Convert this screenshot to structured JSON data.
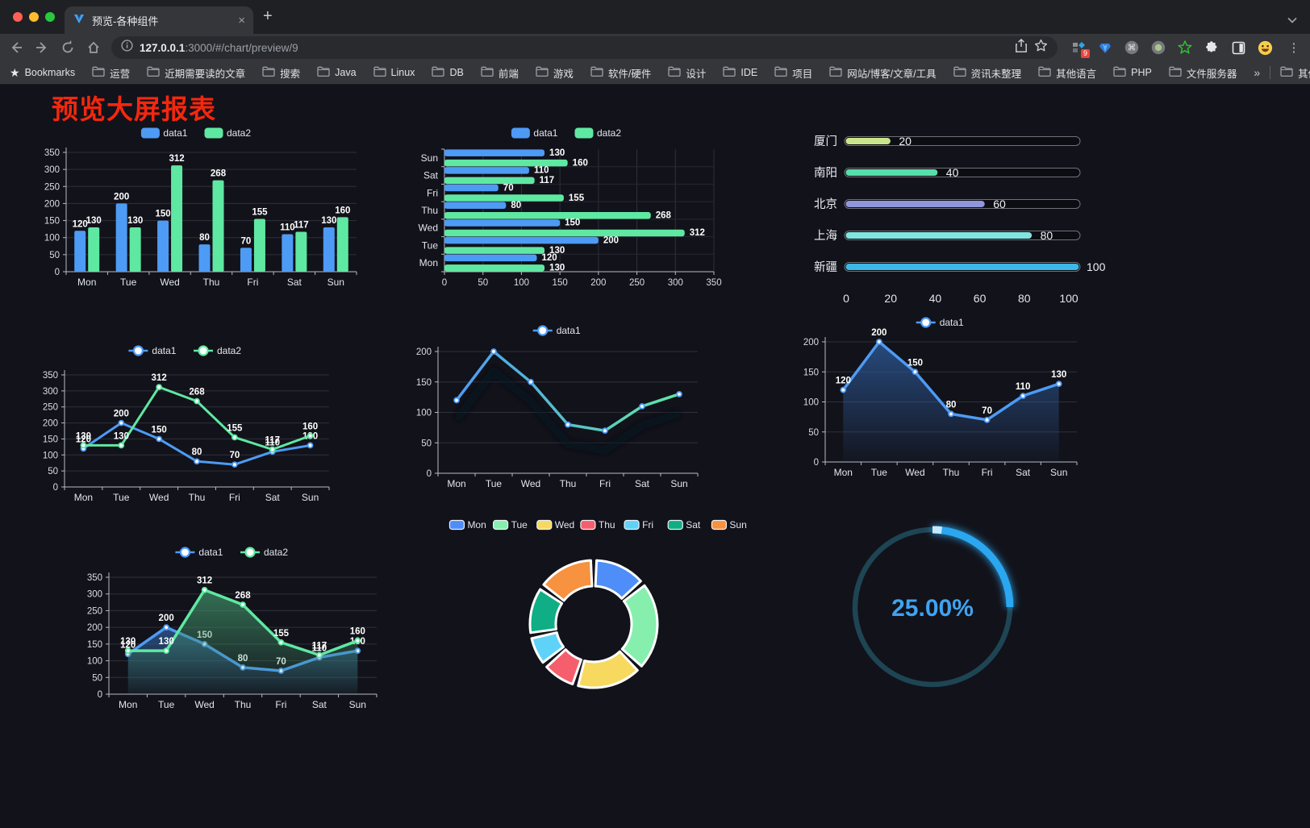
{
  "browser": {
    "tab_title": "预览-各种组件",
    "url": {
      "host": "127.0.0.1",
      "rest": ":3000/#/chart/preview/9"
    },
    "bookmarks_label": "Bookmarks",
    "bookmarks": [
      "运营",
      "近期需要读的文章",
      "搜索",
      "Java",
      "Linux",
      "DB",
      "前端",
      "游戏",
      "软件/硬件",
      "设计",
      "IDE",
      "项目",
      "网站/博客/文章/工具",
      "资讯未整理",
      "其他语言",
      "PHP",
      "文件服务器"
    ],
    "other_bookmarks": "其他书签",
    "extension_badge": "9",
    "icons": {
      "close": "×",
      "new_tab": "+",
      "overflow": "»",
      "menu": "⋮",
      "bookmark_star": "★"
    }
  },
  "page": {
    "title": "预览大屏报表",
    "title_color": "#f5270e",
    "background": "#12121a",
    "accent_blue": "#4d9bf5",
    "accent_green": "#5fe8a2"
  },
  "chart_data": [
    {
      "id": "grouped-bar",
      "type": "bar",
      "categories": [
        "Mon",
        "Tue",
        "Wed",
        "Thu",
        "Fri",
        "Sat",
        "Sun"
      ],
      "series": [
        {
          "name": "data1",
          "color": "#4d9bf5",
          "values": [
            120,
            200,
            150,
            80,
            70,
            110,
            130
          ]
        },
        {
          "name": "data2",
          "color": "#5fe8a2",
          "values": [
            130,
            130,
            312,
            268,
            155,
            117,
            160
          ]
        }
      ],
      "ylim": [
        0,
        350
      ],
      "yticks": [
        0,
        50,
        100,
        150,
        200,
        250,
        300,
        350
      ],
      "legend_position": "top",
      "value_labels": true,
      "grid": true
    },
    {
      "id": "grouped-hbar",
      "type": "hbar",
      "categories_top_to_bottom": [
        "Sun",
        "Sat",
        "Fri",
        "Thu",
        "Wed",
        "Tue",
        "Mon"
      ],
      "series": [
        {
          "name": "data1",
          "color": "#4d9bf5",
          "values_top_to_bottom": [
            130,
            110,
            70,
            80,
            150,
            200,
            120
          ]
        },
        {
          "name": "data2",
          "color": "#5fe8a2",
          "values_top_to_bottom": [
            160,
            117,
            155,
            268,
            312,
            130,
            130
          ]
        }
      ],
      "xlim": [
        0,
        350
      ],
      "xticks": [
        0,
        50,
        100,
        150,
        200,
        250,
        300,
        350
      ],
      "legend_position": "top",
      "value_labels": true,
      "grid": true
    },
    {
      "id": "city-progress",
      "type": "progress",
      "max": 100,
      "xticks": [
        0,
        20,
        40,
        60,
        80,
        100
      ],
      "rows": [
        {
          "label": "厦门",
          "value": 20,
          "color": "#c9e68c"
        },
        {
          "label": "南阳",
          "value": 40,
          "color": "#56dfa9"
        },
        {
          "label": "北京",
          "value": 60,
          "color": "#9096dc"
        },
        {
          "label": "上海",
          "value": 80,
          "color": "#82e4e0"
        },
        {
          "label": "新疆",
          "value": 100,
          "color": "#3cb8e6"
        }
      ]
    },
    {
      "id": "two-line",
      "type": "line",
      "categories": [
        "Mon",
        "Tue",
        "Wed",
        "Thu",
        "Fri",
        "Sat",
        "Sun"
      ],
      "series": [
        {
          "name": "data1",
          "color": "#4d9bf5",
          "values": [
            120,
            200,
            150,
            80,
            70,
            110,
            130
          ]
        },
        {
          "name": "data2",
          "color": "#5fe8a2",
          "values": [
            130,
            130,
            312,
            268,
            155,
            117,
            160
          ]
        }
      ],
      "ylim": [
        0,
        350
      ],
      "yticks": [
        0,
        50,
        100,
        150,
        200,
        250,
        300,
        350
      ],
      "legend_position": "top",
      "value_labels": true,
      "grid": true
    },
    {
      "id": "gradient-line",
      "type": "line",
      "categories": [
        "Mon",
        "Tue",
        "Wed",
        "Thu",
        "Fri",
        "Sat",
        "Sun"
      ],
      "series": [
        {
          "name": "data1",
          "color": "#4d9bf5",
          "gradient": [
            "#4d9bf5",
            "#5fe8a2"
          ],
          "values": [
            120,
            200,
            150,
            80,
            70,
            110,
            130
          ]
        }
      ],
      "ylim": [
        0,
        200
      ],
      "yticks": [
        0,
        50,
        100,
        150,
        200
      ],
      "legend_position": "top",
      "value_labels": false,
      "shadow": true,
      "grid": true
    },
    {
      "id": "single-area",
      "type": "area",
      "categories": [
        "Mon",
        "Tue",
        "Wed",
        "Thu",
        "Fri",
        "Sat",
        "Sun"
      ],
      "series": [
        {
          "name": "data1",
          "color": "#4d9bf5",
          "fill": "#2e5d9e",
          "values": [
            120,
            200,
            150,
            80,
            70,
            110,
            130
          ]
        }
      ],
      "ylim": [
        0,
        200
      ],
      "yticks": [
        0,
        50,
        100,
        150,
        200
      ],
      "legend_position": "top",
      "value_labels": true,
      "grid": true
    },
    {
      "id": "two-area",
      "type": "area",
      "categories": [
        "Mon",
        "Tue",
        "Wed",
        "Thu",
        "Fri",
        "Sat",
        "Sun"
      ],
      "series": [
        {
          "name": "data1",
          "color": "#4d9bf5",
          "fill": "#31609c",
          "values": [
            120,
            200,
            150,
            80,
            70,
            110,
            130
          ]
        },
        {
          "name": "data2",
          "color": "#5fe8a2",
          "fill": "#3f8f68",
          "values": [
            130,
            130,
            312,
            268,
            155,
            117,
            160
          ]
        }
      ],
      "ylim": [
        0,
        350
      ],
      "yticks": [
        0,
        50,
        100,
        150,
        200,
        250,
        300,
        350
      ],
      "legend_position": "top",
      "value_labels": true,
      "grid": true
    },
    {
      "id": "week-donut",
      "type": "pie",
      "categories": [
        "Mon",
        "Tue",
        "Wed",
        "Thu",
        "Fri",
        "Sat",
        "Sun"
      ],
      "values": [
        120,
        200,
        150,
        80,
        70,
        110,
        130
      ],
      "colors": [
        "#4f8ef8",
        "#86efad",
        "#f7d95f",
        "#f55f6d",
        "#5fd3f7",
        "#0fae84",
        "#f79240"
      ],
      "legend_position": "top",
      "inner_radius_ratio": 0.6
    },
    {
      "id": "percent-gauge",
      "type": "gauge",
      "label": "25.00%",
      "percent": 25,
      "color": "#2ba7f0",
      "track_color": "#1e4553",
      "text_color": "#3fa3f0"
    }
  ]
}
